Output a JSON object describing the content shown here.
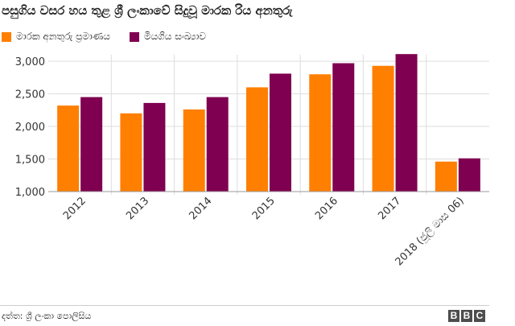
{
  "chart_data": {
    "type": "bar",
    "title": "පසුගිය වසර හය තුළ ශ්‍රී ලංකාවේ සිදුවූ මාරක රිය අනතුරු",
    "categories": [
      "2012",
      "2013",
      "2014",
      "2015",
      "2016",
      "2017",
      "2018 (ජූලි මාස 06)"
    ],
    "series": [
      {
        "name": "මාරක අනතුරු ප්‍රමාණය",
        "color": "#ff7f00",
        "values": [
          2320,
          2200,
          2260,
          2600,
          2800,
          2930,
          1460
        ]
      },
      {
        "name": "මියගිය සංඛ්‍යාව",
        "color": "#7f0050",
        "values": [
          2450,
          2360,
          2450,
          2810,
          2970,
          3110,
          1510
        ]
      }
    ],
    "ylim": [
      1000,
      3100
    ],
    "yticks": [
      1000,
      1500,
      2000,
      2500,
      3000
    ],
    "ytick_labels": [
      "1,000",
      "1,500",
      "2,000",
      "2,500",
      "3,000"
    ],
    "grid": true,
    "legend": "top-left",
    "xlabel": "",
    "ylabel": ""
  },
  "footer": {
    "source": "දත්ත: ශ්‍රී ලංකා පොලිසිය",
    "logo_letters": [
      "B",
      "B",
      "C"
    ]
  }
}
